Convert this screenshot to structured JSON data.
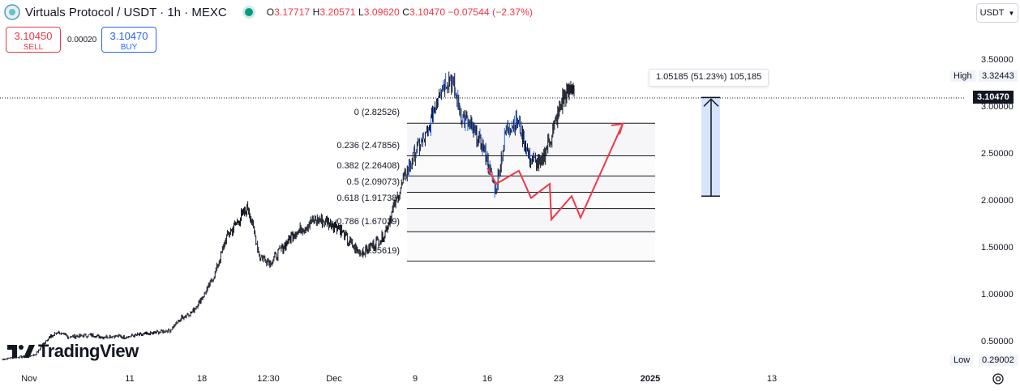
{
  "header": {
    "title": "Virtuals Protocol / USDT · 1h · MEXC",
    "ohlc": {
      "o_label": "O",
      "o": "3.17717",
      "h_label": "H",
      "h": "3.20571",
      "l_label": "L",
      "l": "3.09620",
      "c_label": "C",
      "c": "3.10470",
      "change": "−0.07544 (−2.37%)"
    }
  },
  "trade": {
    "sell_price": "3.10450",
    "sell_label": "SELL",
    "spread": "0.00020",
    "buy_price": "3.10470",
    "buy_label": "BUY"
  },
  "currency": {
    "label": "USDT"
  },
  "price_axis": {
    "ticks": [
      "3.50000",
      "3.00000",
      "2.50000",
      "2.00000",
      "1.50000",
      "1.00000",
      "0.50000"
    ],
    "high_label": "High",
    "high_value": "3.32443",
    "low_label": "Low",
    "low_value": "0.29002",
    "current_price": "3.10470"
  },
  "time_axis": {
    "ticks": [
      "Nov",
      "11",
      "18",
      "12:30",
      "Dec",
      "9",
      "16",
      "23",
      "2025",
      "13"
    ]
  },
  "fib_levels": [
    "0 (2.82526)",
    "0.236 (2.47856)",
    "0.382 (2.26408)",
    "0.5 (2.09073)",
    "0.618 (1.91738)",
    "0.786 (1.67039)",
    "1 (1.35619)"
  ],
  "measure": {
    "text": "1.05185 (51.23%) 105,185"
  },
  "branding": {
    "text": "TradingView"
  },
  "colors": {
    "up": "#089981",
    "down": "#131722",
    "line": "#2962ff",
    "projection": "#f23645",
    "measure": "#2962ff"
  },
  "chart_data": {
    "type": "candlestick",
    "symbol": "Virtuals Protocol / USDT",
    "interval": "1h",
    "exchange": "MEXC",
    "ylim": [
      0.25,
      3.6
    ],
    "price_path": [
      0.31,
      0.33,
      0.34,
      0.36,
      0.52,
      0.6,
      0.55,
      0.56,
      0.57,
      0.55,
      0.56,
      0.55,
      0.57,
      0.58,
      0.6,
      0.62,
      0.75,
      0.82,
      0.99,
      1.22,
      1.6,
      1.78,
      1.93,
      1.4,
      1.35,
      1.5,
      1.65,
      1.72,
      1.8,
      1.78,
      1.72,
      1.55,
      1.44,
      1.52,
      1.62,
      1.95,
      2.28,
      2.55,
      2.72,
      3.2,
      3.32,
      2.9,
      2.75,
      2.55,
      2.1,
      2.78,
      2.85,
      2.45,
      2.38,
      2.7,
      3.08,
      3.22
    ],
    "fibonacci": {
      "high": 2.82526,
      "low": 1.35619,
      "levels": [
        {
          "ratio": 0,
          "price": 2.82526
        },
        {
          "ratio": 0.236,
          "price": 2.47856
        },
        {
          "ratio": 0.382,
          "price": 2.26408
        },
        {
          "ratio": 0.5,
          "price": 2.09073
        },
        {
          "ratio": 0.618,
          "price": 1.91738
        },
        {
          "ratio": 0.786,
          "price": 1.67039
        },
        {
          "ratio": 1,
          "price": 1.35619
        }
      ]
    },
    "price_range_measure": {
      "from": 2.05,
      "to": 3.1,
      "change": 1.05185,
      "percent": 51.23,
      "ticks": 105185
    },
    "projection_path": [
      2.35,
      2.18,
      2.32,
      2.03,
      2.18,
      1.8,
      2.05,
      1.82,
      2.82
    ],
    "high": 3.32443,
    "low": 0.29002,
    "last": 3.1047
  }
}
